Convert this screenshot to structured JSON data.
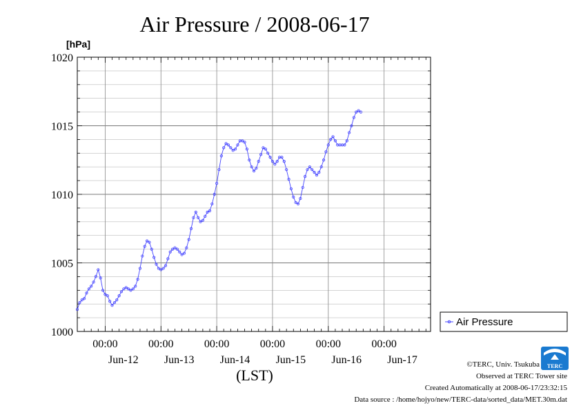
{
  "chart_data": {
    "type": "line",
    "title": "Air Pressure / 2008-06-17",
    "ylabel_unit": "[hPa]",
    "xlabel": "(LST)",
    "ylim": [
      1000,
      1020
    ],
    "y_ticks": [
      "1000",
      "1005",
      "1010",
      "1015",
      "1020"
    ],
    "y_tick_values": [
      1000,
      1005,
      1010,
      1015,
      1020
    ],
    "grid": true,
    "legend_position": "right",
    "x_range_hours": [
      -12,
      140
    ],
    "x_major_ticks": [
      {
        "hour": 0,
        "time": "00:00",
        "date": "Jun-12"
      },
      {
        "hour": 24,
        "time": "00:00",
        "date": "Jun-13"
      },
      {
        "hour": 48,
        "time": "00:00",
        "date": "Jun-14"
      },
      {
        "hour": 72,
        "time": "00:00",
        "date": "Jun-15"
      },
      {
        "hour": 96,
        "time": "00:00",
        "date": "Jun-16"
      },
      {
        "hour": 120,
        "time": "00:00",
        "date": "Jun-17"
      }
    ],
    "series": [
      {
        "name": "Air Pressure",
        "color": "#4444ff",
        "points": [
          [
            -12,
            1001.6
          ],
          [
            -11,
            1002.1
          ],
          [
            -10,
            1002.3
          ],
          [
            -9,
            1002.4
          ],
          [
            -8,
            1002.8
          ],
          [
            -7,
            1003.1
          ],
          [
            -6,
            1003.3
          ],
          [
            -5,
            1003.6
          ],
          [
            -4,
            1004.0
          ],
          [
            -3,
            1004.5
          ],
          [
            -2,
            1003.9
          ],
          [
            -1,
            1003.0
          ],
          [
            0,
            1002.7
          ],
          [
            1,
            1002.6
          ],
          [
            2,
            1002.2
          ],
          [
            3,
            1001.9
          ],
          [
            4,
            1002.1
          ],
          [
            5,
            1002.3
          ],
          [
            6,
            1002.6
          ],
          [
            7,
            1002.9
          ],
          [
            8,
            1003.1
          ],
          [
            9,
            1003.2
          ],
          [
            10,
            1003.1
          ],
          [
            11,
            1003.0
          ],
          [
            12,
            1003.1
          ],
          [
            13,
            1003.3
          ],
          [
            14,
            1003.8
          ],
          [
            15,
            1004.6
          ],
          [
            16,
            1005.5
          ],
          [
            17,
            1006.2
          ],
          [
            18,
            1006.6
          ],
          [
            19,
            1006.5
          ],
          [
            20,
            1006.0
          ],
          [
            21,
            1005.4
          ],
          [
            22,
            1004.9
          ],
          [
            23,
            1004.6
          ],
          [
            24,
            1004.5
          ],
          [
            25,
            1004.6
          ],
          [
            26,
            1004.8
          ],
          [
            27,
            1005.3
          ],
          [
            28,
            1005.8
          ],
          [
            29,
            1006.0
          ],
          [
            30,
            1006.1
          ],
          [
            31,
            1006.0
          ],
          [
            32,
            1005.8
          ],
          [
            33,
            1005.6
          ],
          [
            34,
            1005.7
          ],
          [
            35,
            1006.1
          ],
          [
            36,
            1006.7
          ],
          [
            37,
            1007.5
          ],
          [
            38,
            1008.3
          ],
          [
            39,
            1008.7
          ],
          [
            40,
            1008.3
          ],
          [
            41,
            1008.0
          ],
          [
            42,
            1008.1
          ],
          [
            43,
            1008.4
          ],
          [
            44,
            1008.7
          ],
          [
            45,
            1008.8
          ],
          [
            46,
            1009.3
          ],
          [
            47,
            1010.0
          ],
          [
            48,
            1010.8
          ],
          [
            49,
            1011.8
          ],
          [
            50,
            1012.8
          ],
          [
            51,
            1013.4
          ],
          [
            52,
            1013.7
          ],
          [
            53,
            1013.6
          ],
          [
            54,
            1013.4
          ],
          [
            55,
            1013.2
          ],
          [
            56,
            1013.3
          ],
          [
            57,
            1013.6
          ],
          [
            58,
            1013.9
          ],
          [
            59,
            1013.9
          ],
          [
            60,
            1013.8
          ],
          [
            61,
            1013.3
          ],
          [
            62,
            1012.5
          ],
          [
            63,
            1012.0
          ],
          [
            64,
            1011.7
          ],
          [
            65,
            1011.9
          ],
          [
            66,
            1012.4
          ],
          [
            67,
            1012.9
          ],
          [
            68,
            1013.4
          ],
          [
            69,
            1013.3
          ],
          [
            70,
            1013.0
          ],
          [
            71,
            1012.7
          ],
          [
            72,
            1012.4
          ],
          [
            73,
            1012.2
          ],
          [
            74,
            1012.4
          ],
          [
            75,
            1012.7
          ],
          [
            76,
            1012.7
          ],
          [
            77,
            1012.4
          ],
          [
            78,
            1011.8
          ],
          [
            79,
            1011.1
          ],
          [
            80,
            1010.4
          ],
          [
            81,
            1009.8
          ],
          [
            82,
            1009.4
          ],
          [
            83,
            1009.3
          ],
          [
            84,
            1009.7
          ],
          [
            85,
            1010.5
          ],
          [
            86,
            1011.3
          ],
          [
            87,
            1011.8
          ],
          [
            88,
            1012.0
          ],
          [
            89,
            1011.8
          ],
          [
            90,
            1011.6
          ],
          [
            91,
            1011.4
          ],
          [
            92,
            1011.6
          ],
          [
            93,
            1012.0
          ],
          [
            94,
            1012.5
          ],
          [
            95,
            1013.1
          ],
          [
            96,
            1013.6
          ],
          [
            97,
            1014.0
          ],
          [
            98,
            1014.2
          ],
          [
            99,
            1013.9
          ],
          [
            100,
            1013.6
          ],
          [
            101,
            1013.6
          ],
          [
            102,
            1013.6
          ],
          [
            103,
            1013.6
          ],
          [
            104,
            1013.9
          ],
          [
            105,
            1014.5
          ],
          [
            106,
            1015.0
          ],
          [
            107,
            1015.6
          ],
          [
            108,
            1016.0
          ],
          [
            109,
            1016.1
          ],
          [
            110,
            1016.0
          ]
        ]
      }
    ]
  },
  "credits": {
    "copyright": "©TERC, Univ. Tsukuba",
    "observed": "Observed at TERC Tower site",
    "created": "Created Automatically at 2008-06-17/23:32:15",
    "source": "Data source : /home/hojyo/new/TERC-data/sorted_data/MET.30m.dat"
  },
  "logo": {
    "text": "TERC",
    "color": "#1a7ad0"
  }
}
